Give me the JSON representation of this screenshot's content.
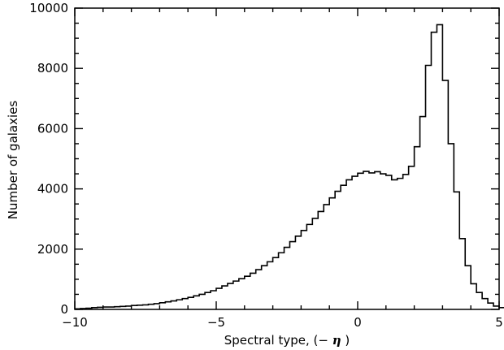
{
  "chart_data": {
    "type": "bar",
    "title": "",
    "xlabel_prefix": "Spectral type, (− ",
    "xlabel_symbol": "η",
    "xlabel_suffix": ")",
    "ylabel": "Number of galaxies",
    "xlim": [
      -10,
      5
    ],
    "ylim": [
      0,
      10000
    ],
    "xticks": [
      -10,
      -5,
      0,
      5
    ],
    "yticks": [
      0,
      2000,
      4000,
      6000,
      8000,
      10000
    ],
    "xtick_labels": [
      "−10",
      "−5",
      "0",
      "5"
    ],
    "ytick_labels": [
      "0",
      "2000",
      "4000",
      "6000",
      "8000",
      "10000"
    ],
    "grid": false,
    "bin_start": -10,
    "bin_width": 0.2,
    "values": [
      20,
      30,
      40,
      60,
      70,
      80,
      80,
      90,
      100,
      110,
      130,
      140,
      150,
      170,
      190,
      220,
      250,
      280,
      320,
      360,
      400,
      450,
      500,
      560,
      620,
      700,
      780,
      860,
      940,
      1020,
      1100,
      1200,
      1320,
      1450,
      1580,
      1720,
      1880,
      2060,
      2250,
      2430,
      2620,
      2820,
      3020,
      3250,
      3480,
      3700,
      3920,
      4120,
      4300,
      4420,
      4520,
      4580,
      4530,
      4570,
      4500,
      4450,
      4300,
      4350,
      4480,
      4750,
      5400,
      6400,
      8100,
      9200,
      9450,
      7600,
      5500,
      3900,
      2350,
      1450,
      850,
      560,
      360,
      210,
      110,
      60,
      30,
      15,
      8,
      2
    ],
    "series_color": "#000000"
  }
}
